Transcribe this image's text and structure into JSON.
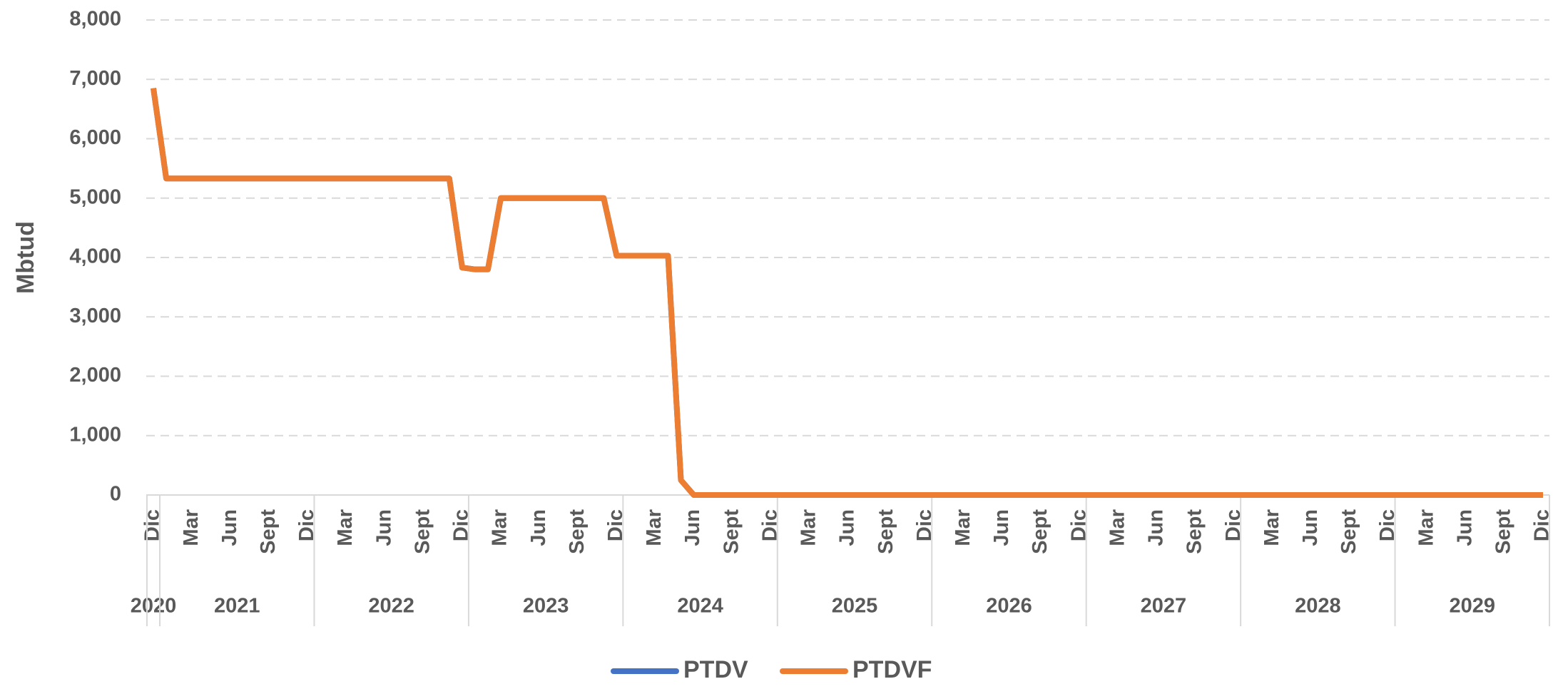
{
  "chart_data": {
    "type": "line",
    "y_label": "Mbtud",
    "categories": [
      "Dic",
      null,
      null,
      "Mar",
      null,
      null,
      "Jun",
      null,
      null,
      "Sept",
      null,
      null,
      "Dic",
      null,
      null,
      "Mar",
      null,
      null,
      "Jun",
      null,
      null,
      "Sept",
      null,
      null,
      "Dic",
      null,
      null,
      "Mar",
      null,
      null,
      "Jun",
      null,
      null,
      "Sept",
      null,
      null,
      "Dic",
      null,
      null,
      "Mar",
      null,
      null,
      "Jun",
      null,
      null,
      "Sept",
      null,
      null,
      "Dic",
      null,
      null,
      "Mar",
      null,
      null,
      "Jun",
      null,
      null,
      "Sept",
      null,
      null,
      "Dic",
      null,
      null,
      "Mar",
      null,
      null,
      "Jun",
      null,
      null,
      "Sept",
      null,
      null,
      "Dic",
      null,
      null,
      "Mar",
      null,
      null,
      "Jun",
      null,
      null,
      "Sept",
      null,
      null,
      "Dic",
      null,
      null,
      "Mar",
      null,
      null,
      "Jun",
      null,
      null,
      "Sept",
      null,
      null,
      "Dic",
      null,
      null,
      "Mar",
      null,
      null,
      "Jun",
      null,
      null,
      "Sept",
      null,
      null,
      "Dic"
    ],
    "years": [
      "2020",
      "2021",
      "2022",
      "2023",
      "2024",
      "2025",
      "2026",
      "2027",
      "2028",
      "2029"
    ],
    "series": [
      {
        "name": "PTDV",
        "color": "#4472C4",
        "values": [
          6850,
          5330,
          5330,
          5330,
          5330,
          5330,
          5330,
          5330,
          5330,
          5330,
          5330,
          5330,
          5330,
          5330,
          5330,
          5330,
          5330,
          5330,
          5330,
          5330,
          5330,
          5330,
          5330,
          5330,
          3830,
          3800,
          3800,
          5000,
          5000,
          5000,
          5000,
          5000,
          5000,
          5000,
          5000,
          5000,
          4030,
          4030,
          4030,
          4030,
          4030,
          250,
          0,
          0,
          0,
          0,
          0,
          0,
          0,
          0,
          0,
          0,
          0,
          0,
          0,
          0,
          0,
          0,
          0,
          0,
          0,
          0,
          0,
          0,
          0,
          0,
          0,
          0,
          0,
          0,
          0,
          0,
          0,
          0,
          0,
          0,
          0,
          0,
          0,
          0,
          0,
          0,
          0,
          0,
          0,
          0,
          0,
          0,
          0,
          0,
          0,
          0,
          0,
          0,
          0,
          0,
          0,
          0,
          0,
          0,
          0,
          0,
          0,
          0,
          0,
          0,
          0,
          0,
          0
        ]
      },
      {
        "name": "PTDVF",
        "color": "#ED7D31",
        "values": [
          6850,
          5330,
          5330,
          5330,
          5330,
          5330,
          5330,
          5330,
          5330,
          5330,
          5330,
          5330,
          5330,
          5330,
          5330,
          5330,
          5330,
          5330,
          5330,
          5330,
          5330,
          5330,
          5330,
          5330,
          3830,
          3800,
          3800,
          5000,
          5000,
          5000,
          5000,
          5000,
          5000,
          5000,
          5000,
          5000,
          4030,
          4030,
          4030,
          4030,
          4030,
          250,
          0,
          0,
          0,
          0,
          0,
          0,
          0,
          0,
          0,
          0,
          0,
          0,
          0,
          0,
          0,
          0,
          0,
          0,
          0,
          0,
          0,
          0,
          0,
          0,
          0,
          0,
          0,
          0,
          0,
          0,
          0,
          0,
          0,
          0,
          0,
          0,
          0,
          0,
          0,
          0,
          0,
          0,
          0,
          0,
          0,
          0,
          0,
          0,
          0,
          0,
          0,
          0,
          0,
          0,
          0,
          0,
          0,
          0,
          0,
          0,
          0,
          0,
          0,
          0,
          0,
          0,
          0
        ]
      }
    ],
    "ylim": [
      0,
      8000
    ],
    "yticks": [
      {
        "value": 0,
        "label": "0"
      },
      {
        "value": 1000,
        "label": "1,000"
      },
      {
        "value": 2000,
        "label": "2,000"
      },
      {
        "value": 3000,
        "label": "3,000"
      },
      {
        "value": 4000,
        "label": "4,000"
      },
      {
        "value": 5000,
        "label": "5,000"
      },
      {
        "value": 6000,
        "label": "6,000"
      },
      {
        "value": 7000,
        "label": "7,000"
      },
      {
        "value": 8000,
        "label": "8,000"
      }
    ],
    "grid": true,
    "legend": "bottom"
  }
}
